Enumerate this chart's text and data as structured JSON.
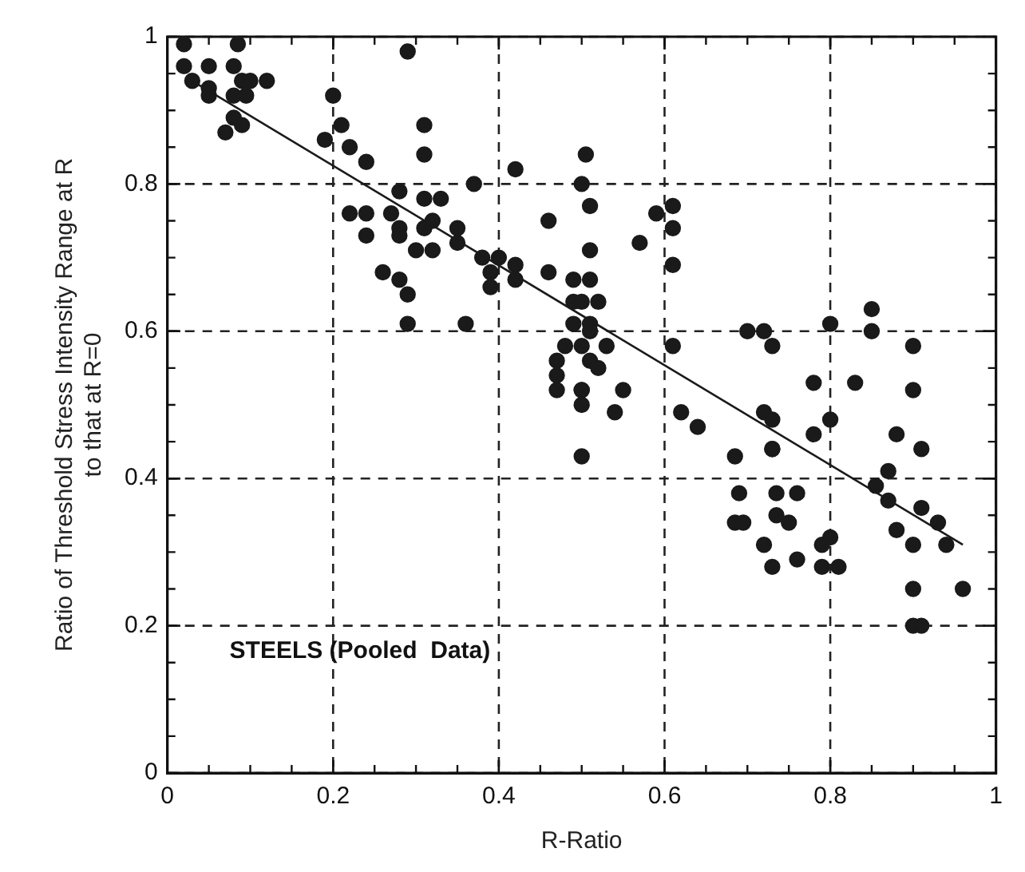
{
  "chart_data": {
    "type": "scatter",
    "xlabel": "R-Ratio",
    "ylabel": "Ratio of Threshold Stress Intensity Range at R\nto that at R=0",
    "annotations": [
      "STEELS (Pooled  Data)"
    ],
    "xlim": [
      0,
      1
    ],
    "ylim": [
      0,
      1
    ],
    "xticks": [
      0,
      0.2,
      0.4,
      0.6,
      0.8,
      1
    ],
    "yticks": [
      0,
      0.2,
      0.4,
      0.6,
      0.8,
      1
    ],
    "grid": true,
    "legend": false,
    "series": [
      {
        "type": "scatter",
        "marker": "circle",
        "color": "#1a1a1a",
        "x": [
          0.02,
          0.085,
          0.29,
          0.02,
          0.05,
          0.08,
          0.03,
          0.09,
          0.1,
          0.12,
          0.05,
          0.05,
          0.08,
          0.095,
          0.08,
          0.09,
          0.07,
          0.2,
          0.21,
          0.19,
          0.22,
          0.24,
          0.31,
          0.31,
          0.37,
          0.42,
          0.28,
          0.31,
          0.33,
          0.22,
          0.24,
          0.27,
          0.24,
          0.28,
          0.28,
          0.31,
          0.32,
          0.35,
          0.35,
          0.3,
          0.32,
          0.26,
          0.28,
          0.29,
          0.29,
          0.36,
          0.38,
          0.4,
          0.42,
          0.39,
          0.42,
          0.39,
          0.46,
          0.49,
          0.49,
          0.46,
          0.49,
          0.48,
          0.47,
          0.47,
          0.47,
          0.5,
          0.505,
          0.5,
          0.51,
          0.51,
          0.51,
          0.5,
          0.52,
          0.51,
          0.51,
          0.5,
          0.53,
          0.51,
          0.52,
          0.5,
          0.5,
          0.55,
          0.54,
          0.5,
          0.57,
          0.59,
          0.61,
          0.61,
          0.61,
          0.61,
          0.62,
          0.64,
          0.7,
          0.72,
          0.73,
          0.8,
          0.85,
          0.85,
          0.9,
          0.78,
          0.83,
          0.9,
          0.72,
          0.73,
          0.78,
          0.8,
          0.73,
          0.88,
          0.91,
          0.685,
          0.73,
          0.69,
          0.735,
          0.76,
          0.685,
          0.695,
          0.735,
          0.75,
          0.72,
          0.73,
          0.76,
          0.79,
          0.8,
          0.79,
          0.81,
          0.87,
          0.855,
          0.87,
          0.91,
          0.93,
          0.94,
          0.88,
          0.9,
          0.9,
          0.96,
          0.9,
          0.91
        ],
        "values": [
          0.99,
          0.99,
          0.98,
          0.96,
          0.96,
          0.96,
          0.94,
          0.94,
          0.94,
          0.94,
          0.93,
          0.92,
          0.92,
          0.92,
          0.89,
          0.88,
          0.87,
          0.92,
          0.88,
          0.86,
          0.85,
          0.83,
          0.88,
          0.84,
          0.8,
          0.82,
          0.79,
          0.78,
          0.78,
          0.76,
          0.76,
          0.76,
          0.73,
          0.74,
          0.73,
          0.74,
          0.75,
          0.74,
          0.72,
          0.71,
          0.71,
          0.68,
          0.67,
          0.65,
          0.61,
          0.61,
          0.7,
          0.7,
          0.69,
          0.68,
          0.67,
          0.66,
          0.68,
          0.67,
          0.64,
          0.75,
          0.61,
          0.58,
          0.56,
          0.54,
          0.52,
          0.52,
          0.84,
          0.8,
          0.77,
          0.71,
          0.67,
          0.64,
          0.64,
          0.61,
          0.6,
          0.58,
          0.58,
          0.56,
          0.55,
          0.5,
          0.43,
          0.52,
          0.49,
          0.52,
          0.72,
          0.76,
          0.77,
          0.74,
          0.69,
          0.58,
          0.49,
          0.47,
          0.6,
          0.6,
          0.58,
          0.61,
          0.63,
          0.6,
          0.58,
          0.53,
          0.53,
          0.52,
          0.49,
          0.48,
          0.46,
          0.48,
          0.44,
          0.46,
          0.44,
          0.43,
          0.44,
          0.38,
          0.38,
          0.38,
          0.34,
          0.34,
          0.35,
          0.34,
          0.31,
          0.28,
          0.29,
          0.31,
          0.32,
          0.28,
          0.28,
          0.41,
          0.39,
          0.37,
          0.36,
          0.34,
          0.31,
          0.33,
          0.31,
          0.25,
          0.25,
          0.2,
          0.2
        ]
      },
      {
        "type": "line",
        "color": "#1a1a1a",
        "x": [
          0.03,
          0.96
        ],
        "values": [
          0.94,
          0.31
        ]
      }
    ]
  }
}
